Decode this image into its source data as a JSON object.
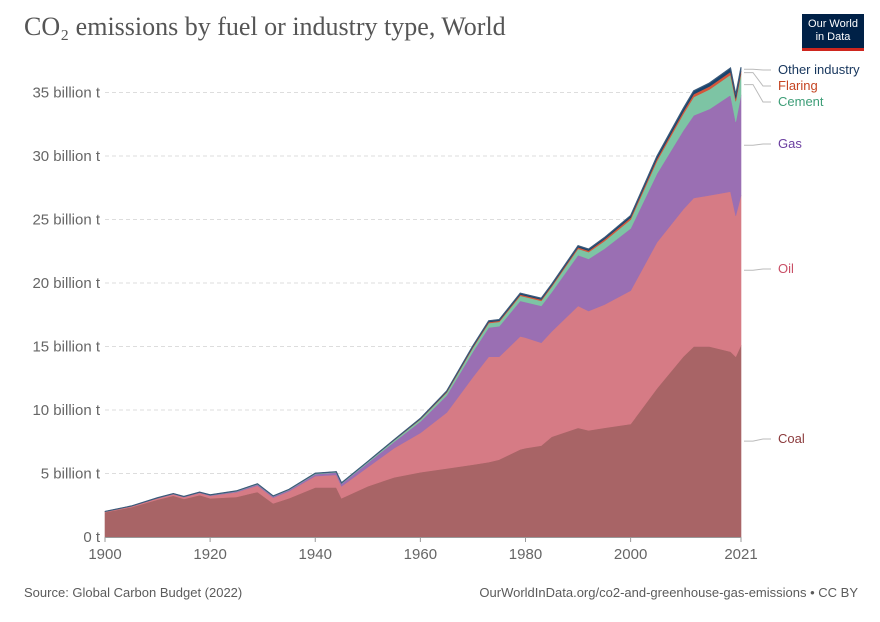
{
  "header": {
    "title": "CO₂ emissions by fuel or industry type, World",
    "logo_line1": "Our World",
    "logo_line2": "in Data"
  },
  "footer": {
    "source": "Source: Global Carbon Budget (2022)",
    "link": "OurWorldInData.org/co2-and-greenhouse-gas-emissions • CC BY"
  },
  "chart_data": {
    "type": "area",
    "stacked": true,
    "title": "CO₂ emissions by fuel or industry type, World",
    "xlabel": "",
    "ylabel": "",
    "xlim": [
      1900,
      2021
    ],
    "ylim": [
      0,
      37000000000
    ],
    "y_unit": "t",
    "yticks": [
      0,
      5000000000,
      10000000000,
      15000000000,
      20000000000,
      25000000000,
      30000000000,
      35000000000
    ],
    "ytick_labels": [
      "0 t",
      "5 billion t",
      "10 billion t",
      "15 billion t",
      "20 billion t",
      "25 billion t",
      "30 billion t",
      "35 billion t"
    ],
    "xticks": [
      1900,
      1920,
      1940,
      1960,
      1980,
      2000,
      2021
    ],
    "grid": "horizontal dashed",
    "legend": "right-side labels",
    "x": [
      1900,
      1905,
      1910,
      1913,
      1915,
      1918,
      1920,
      1925,
      1929,
      1932,
      1935,
      1940,
      1944,
      1945,
      1950,
      1955,
      1960,
      1965,
      1970,
      1973,
      1975,
      1979,
      1980,
      1983,
      1985,
      1990,
      1992,
      1995,
      2000,
      2005,
      2010,
      2012,
      2015,
      2019,
      2020,
      2021
    ],
    "series": [
      {
        "name": "Coal",
        "color": "#a86466",
        "values": [
          1.95,
          2.35,
          2.95,
          3.25,
          3.0,
          3.3,
          3.05,
          3.15,
          3.55,
          2.65,
          3.05,
          3.9,
          3.9,
          3.05,
          4.0,
          4.7,
          5.1,
          5.4,
          5.7,
          5.9,
          6.1,
          6.9,
          7.0,
          7.2,
          7.9,
          8.6,
          8.4,
          8.6,
          8.9,
          11.7,
          14.2,
          15.0,
          15.0,
          14.6,
          14.2,
          15.1
        ]
      },
      {
        "name": "Oil",
        "color": "#d67b85",
        "values": [
          0.05,
          0.07,
          0.1,
          0.12,
          0.14,
          0.18,
          0.2,
          0.38,
          0.5,
          0.45,
          0.55,
          0.9,
          1.0,
          0.95,
          1.5,
          2.3,
          3.1,
          4.4,
          6.9,
          8.3,
          8.1,
          8.9,
          8.7,
          8.1,
          8.3,
          9.6,
          9.4,
          9.7,
          10.5,
          11.5,
          11.6,
          11.7,
          11.9,
          12.6,
          11.1,
          11.8
        ]
      },
      {
        "name": "Gas",
        "color": "#9a6fb3",
        "values": [
          0.0,
          0.01,
          0.02,
          0.03,
          0.03,
          0.03,
          0.04,
          0.06,
          0.09,
          0.09,
          0.1,
          0.15,
          0.18,
          0.2,
          0.35,
          0.5,
          0.9,
          1.35,
          2.0,
          2.3,
          2.4,
          2.8,
          2.8,
          2.9,
          3.1,
          4.0,
          4.1,
          4.4,
          4.9,
          5.4,
          6.2,
          6.5,
          6.8,
          7.6,
          7.4,
          7.9
        ]
      },
      {
        "name": "Cement",
        "color": "#7dc4a4",
        "values": [
          0.01,
          0.01,
          0.02,
          0.02,
          0.02,
          0.02,
          0.03,
          0.04,
          0.05,
          0.04,
          0.05,
          0.07,
          0.06,
          0.06,
          0.08,
          0.12,
          0.16,
          0.22,
          0.3,
          0.34,
          0.34,
          0.4,
          0.4,
          0.4,
          0.42,
          0.5,
          0.53,
          0.6,
          0.7,
          1.0,
          1.3,
          1.45,
          1.55,
          1.6,
          1.62,
          1.65
        ]
      },
      {
        "name": "Flaring",
        "color": "#d4563a",
        "values": [
          0.0,
          0.0,
          0.0,
          0.0,
          0.0,
          0.0,
          0.0,
          0.0,
          0.0,
          0.0,
          0.0,
          0.0,
          0.0,
          0.0,
          0.01,
          0.02,
          0.04,
          0.06,
          0.08,
          0.09,
          0.09,
          0.1,
          0.1,
          0.1,
          0.1,
          0.12,
          0.12,
          0.14,
          0.16,
          0.18,
          0.2,
          0.22,
          0.23,
          0.23,
          0.22,
          0.23
        ]
      },
      {
        "name": "Other industry",
        "color": "#18456f",
        "values": [
          0.0,
          0.0,
          0.0,
          0.0,
          0.0,
          0.0,
          0.0,
          0.0,
          0.0,
          0.0,
          0.0,
          0.0,
          0.0,
          0.0,
          0.01,
          0.02,
          0.04,
          0.06,
          0.08,
          0.09,
          0.09,
          0.1,
          0.1,
          0.1,
          0.1,
          0.12,
          0.12,
          0.13,
          0.15,
          0.2,
          0.24,
          0.26,
          0.27,
          0.3,
          0.29,
          0.3
        ]
      }
    ],
    "series_units": "billion t"
  }
}
